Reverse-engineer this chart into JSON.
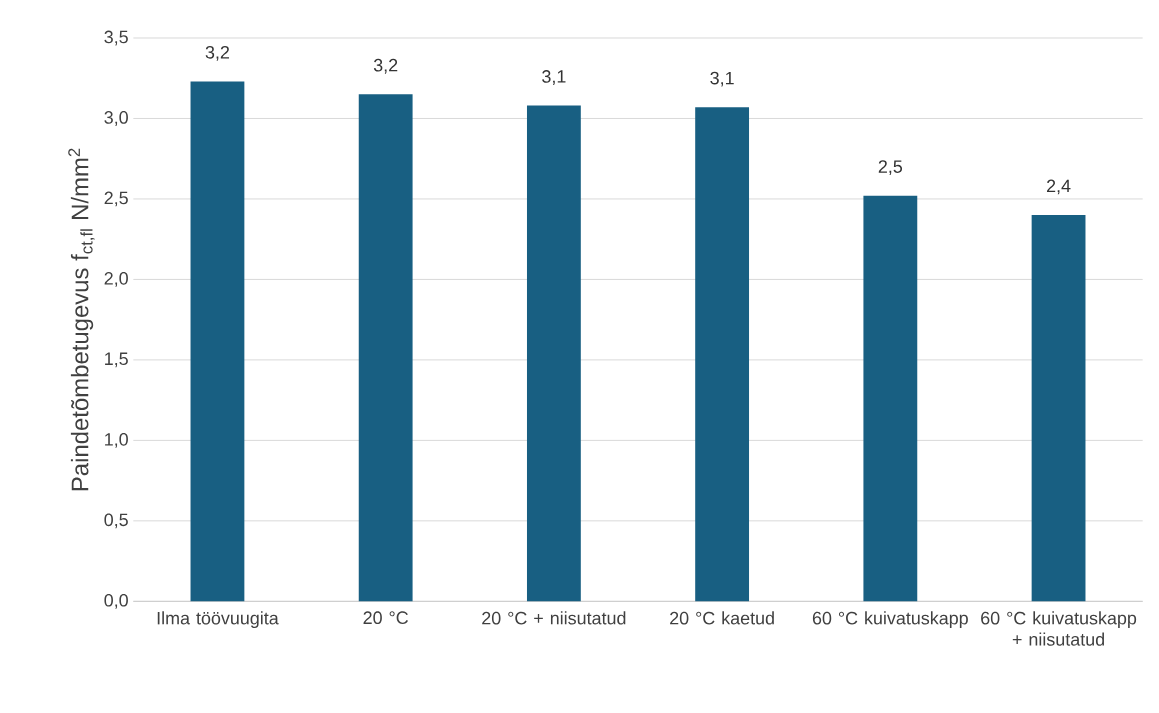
{
  "chart_data": {
    "type": "bar",
    "ylabel": "Paindetõmbetugevus f$_{ct,fl}$ N/mm$^{2}$",
    "categories": [
      "Ilma töövuugita",
      "20 °C",
      "20 °C + niisutatud",
      "20 °C kaetud",
      "60 °C kuivatuskapp",
      "60 °C kuivatuskapp + niisutatud"
    ],
    "values": [
      3.23,
      3.15,
      3.08,
      3.07,
      2.52,
      2.4
    ],
    "value_labels": [
      "3,2",
      "3,2",
      "3,1",
      "3,1",
      "2,5",
      "2,4"
    ],
    "color": "#185f82",
    "ylim": [
      0,
      3.5
    ],
    "yticks": [
      {
        "value": 0,
        "label": "0,0"
      },
      {
        "value": 0.5,
        "label": "0,5"
      },
      {
        "value": 1,
        "label": "1,0"
      },
      {
        "value": 1.5,
        "label": "1,5"
      },
      {
        "value": 2,
        "label": "2,0"
      },
      {
        "value": 2.5,
        "label": "2,5"
      },
      {
        "value": 3,
        "label": "3,0"
      },
      {
        "value": 3.5,
        "label": "3,5"
      }
    ],
    "grid": "y"
  }
}
